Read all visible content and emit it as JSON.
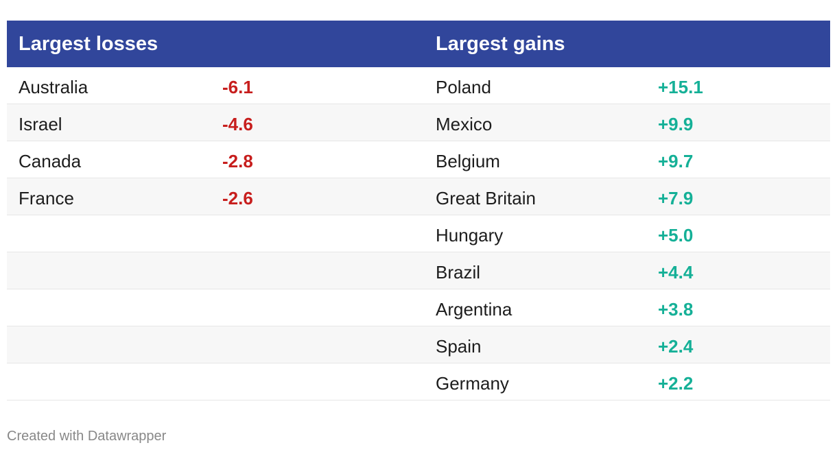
{
  "chart_data": {
    "type": "table",
    "columns": [
      "Largest losses",
      "",
      "Largest gains",
      ""
    ],
    "losses": [
      {
        "country": "Australia",
        "value": "-6.1"
      },
      {
        "country": "Israel",
        "value": "-4.6"
      },
      {
        "country": "Canada",
        "value": "-2.8"
      },
      {
        "country": "France",
        "value": "-2.6"
      }
    ],
    "gains": [
      {
        "country": "Poland",
        "value": "+15.1"
      },
      {
        "country": "Mexico",
        "value": "+9.9"
      },
      {
        "country": "Belgium",
        "value": "+9.7"
      },
      {
        "country": "Great Britain",
        "value": "+7.9"
      },
      {
        "country": "Hungary",
        "value": "+5.0"
      },
      {
        "country": "Brazil",
        "value": "+4.4"
      },
      {
        "country": "Argentina",
        "value": "+3.8"
      },
      {
        "country": "Spain",
        "value": "+2.4"
      },
      {
        "country": "Germany",
        "value": "+2.2"
      }
    ],
    "colors": {
      "header_bg": "#31469b",
      "loss": "#c71e1d",
      "gain": "#15b097"
    }
  },
  "header": {
    "losses_title": "Largest losses",
    "gains_title": "Largest gains"
  },
  "footer": {
    "credit": "Created with Datawrapper"
  }
}
